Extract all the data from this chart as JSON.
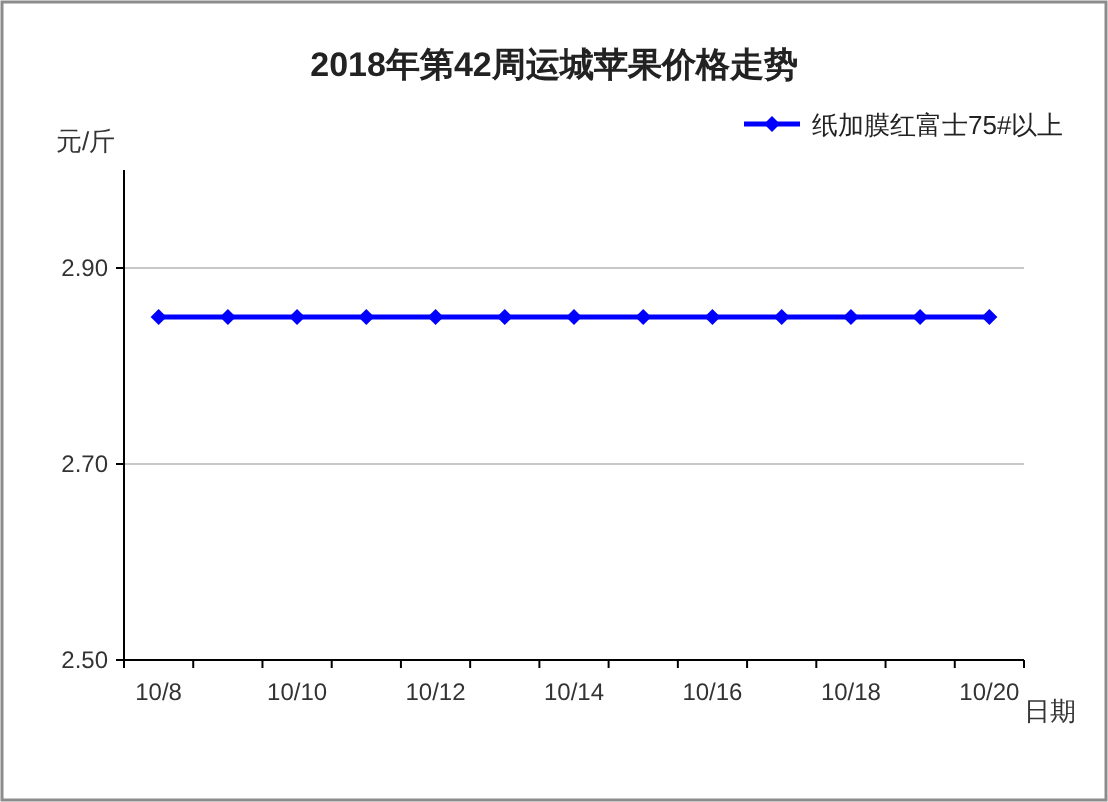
{
  "chart_data": {
    "type": "line",
    "title": "2018年第42周运城苹果价格走势",
    "ylabel": "元/斤",
    "xlabel": "日期",
    "categories": [
      "10/8",
      null,
      "10/10",
      null,
      "10/12",
      null,
      "10/14",
      null,
      "10/16",
      null,
      "10/18",
      null,
      "10/20"
    ],
    "series": [
      {
        "name": "纸加膜红富士75#以上",
        "color": "#0000ff",
        "values": [
          2.85,
          2.85,
          2.85,
          2.85,
          2.85,
          2.85,
          2.85,
          2.85,
          2.85,
          2.85,
          2.85,
          2.85,
          2.85
        ]
      }
    ],
    "ylim": [
      2.5,
      3.0
    ],
    "yticks": [
      {
        "value": 2.5,
        "label": "2.50"
      },
      {
        "value": 2.7,
        "label": "2.70"
      },
      {
        "value": 2.9,
        "label": "2.90"
      }
    ],
    "grid": "y",
    "legend": "top right",
    "marker": "diamond",
    "line_style": "solid"
  }
}
